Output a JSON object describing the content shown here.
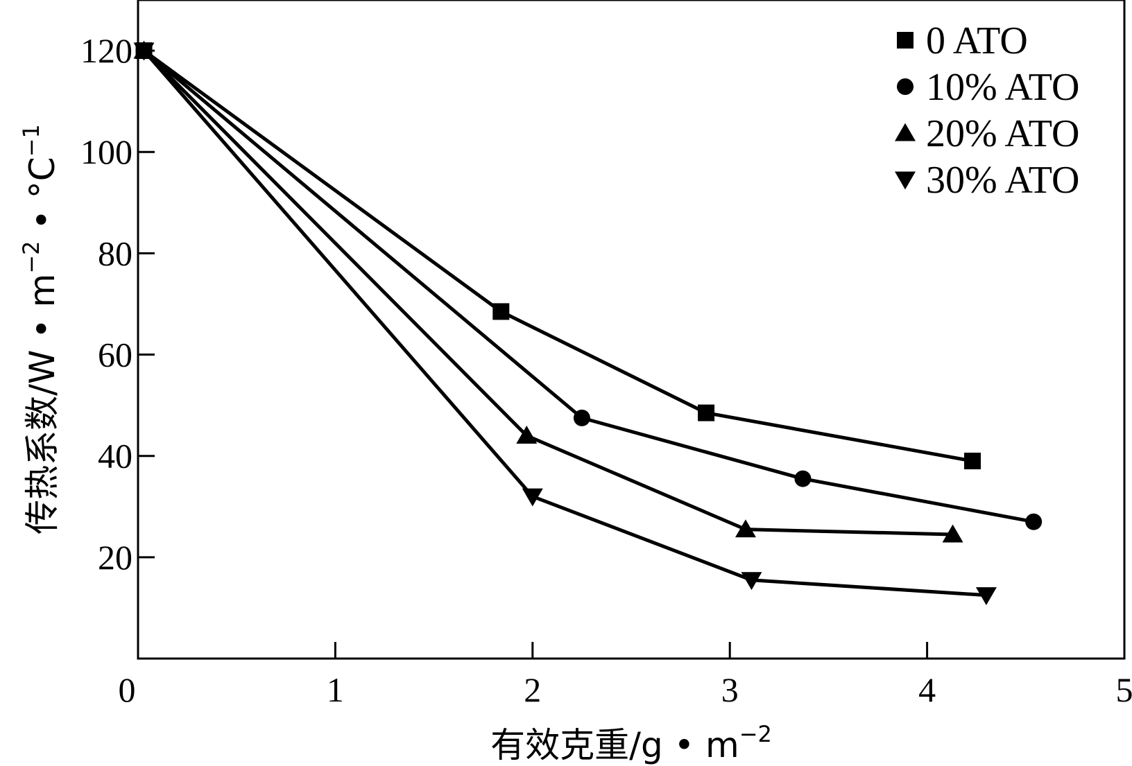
{
  "chart_data": {
    "type": "line",
    "title": "",
    "xlabel": "有效克重/g • m",
    "xlabel_sup": "−2",
    "ylabel": "传热系数/W • m",
    "ylabel_sup1": "−2",
    "ylabel_mid": " • °C",
    "ylabel_sup2": "−1",
    "xlim": [
      0,
      5
    ],
    "ylim": [
      0,
      130
    ],
    "xticks": [
      0,
      1,
      2,
      3,
      4,
      5
    ],
    "yticks": [
      20,
      40,
      60,
      80,
      100,
      120
    ],
    "grid": false,
    "legend_position": "top-right",
    "series": [
      {
        "name": "0 ATO",
        "marker": "square",
        "x": [
          0.03,
          1.84,
          2.88,
          4.23
        ],
        "y": [
          120,
          68.5,
          48.5,
          39
        ]
      },
      {
        "name": "10% ATO",
        "marker": "circle",
        "x": [
          0.03,
          2.25,
          3.37,
          4.54
        ],
        "y": [
          120,
          47.5,
          35.5,
          27
        ]
      },
      {
        "name": "20% ATO",
        "marker": "triangle-up",
        "x": [
          0.03,
          1.97,
          3.08,
          4.13
        ],
        "y": [
          120,
          44,
          25.5,
          24.5
        ]
      },
      {
        "name": "30% ATO",
        "marker": "triangle-down",
        "x": [
          0.03,
          2.0,
          3.11,
          4.3
        ],
        "y": [
          120,
          32,
          15.5,
          12.5
        ]
      }
    ]
  }
}
